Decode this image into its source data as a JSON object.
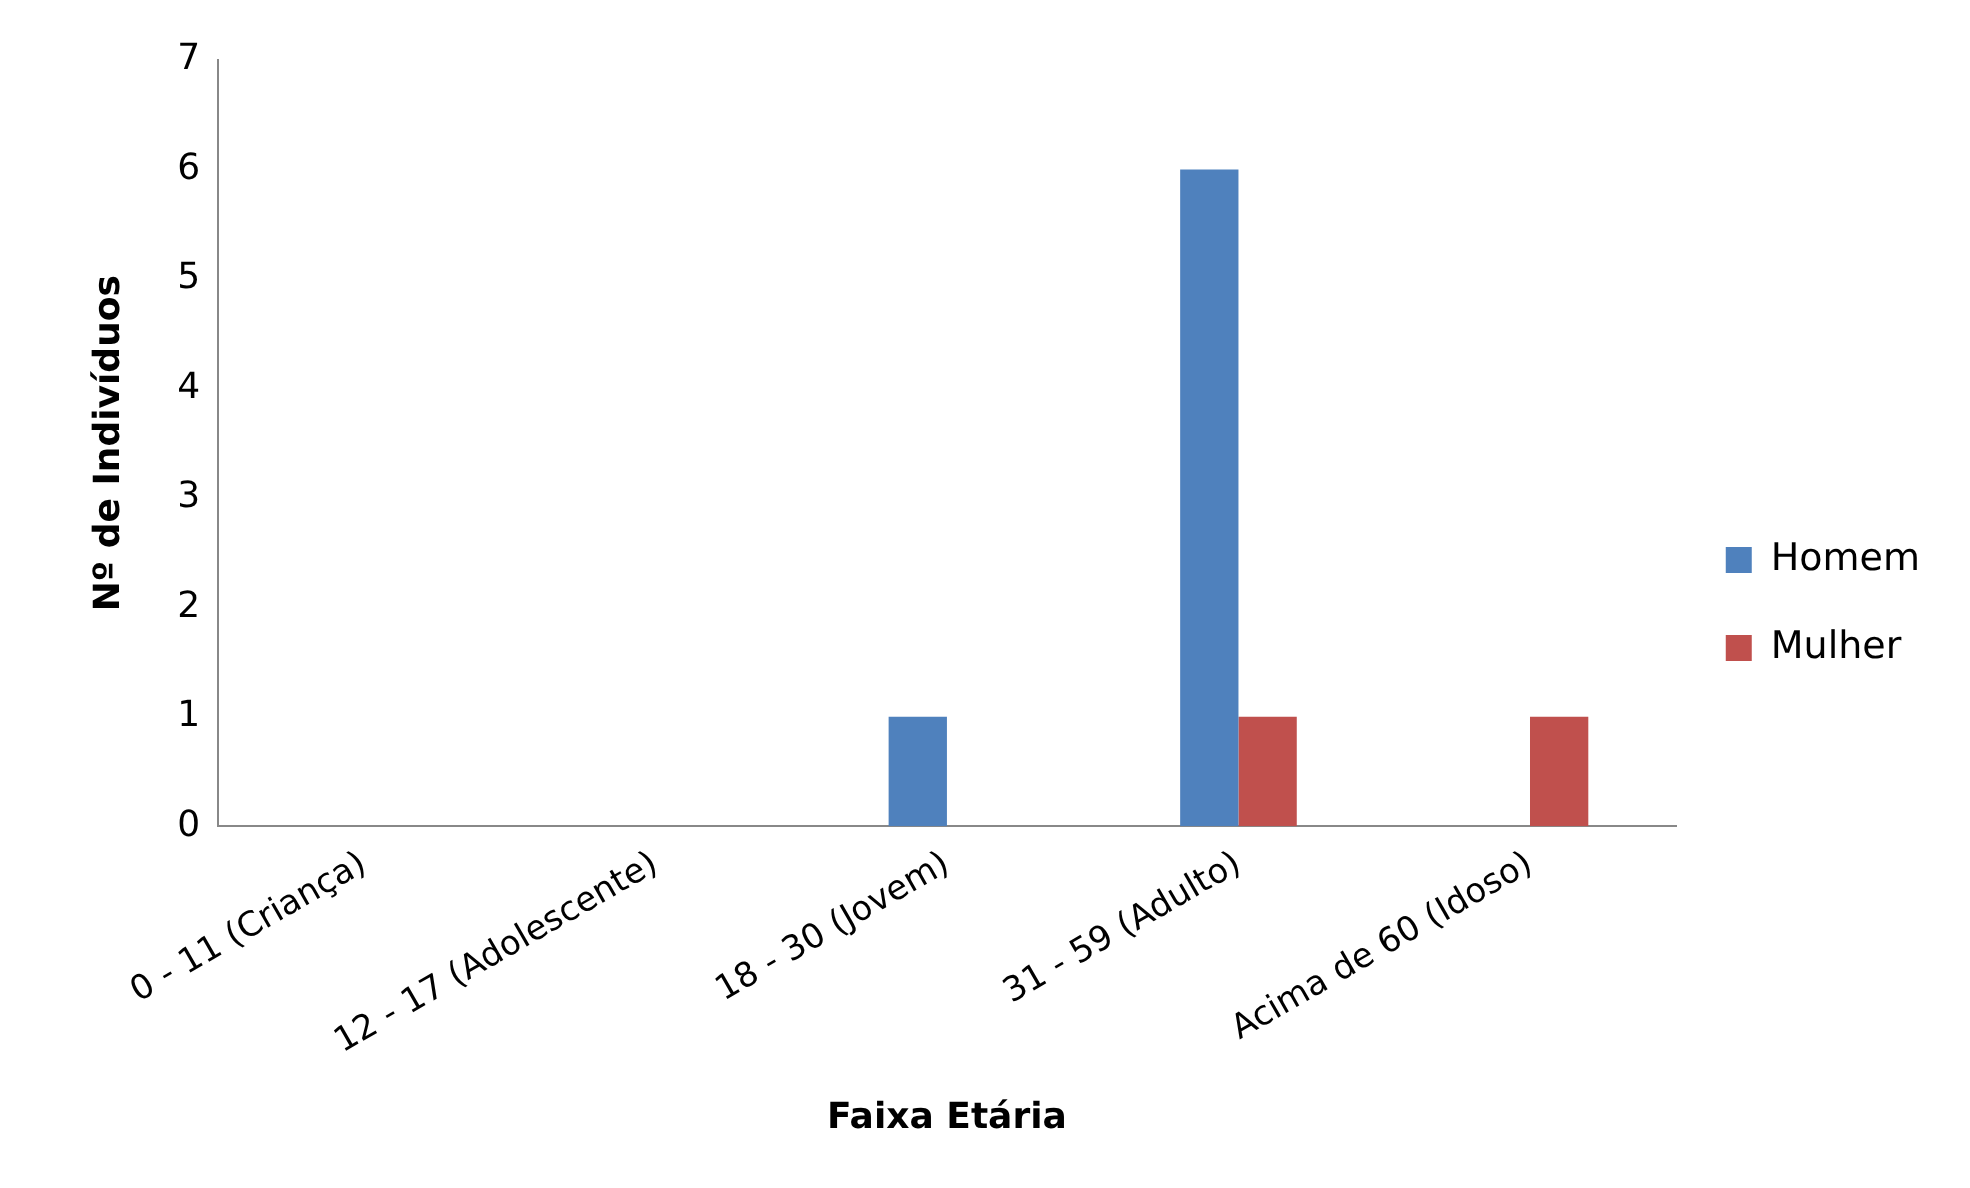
{
  "chart_data": {
    "type": "bar",
    "xlabel": "Faixa Etária",
    "ylabel": "Nº de Indivíduos",
    "categories": [
      "0 - 11 (Criança)",
      "12 - 17 (Adolescente)",
      "18 - 30 (Jovem)",
      "31 - 59 (Adulto)",
      "Acima de 60 (Idoso)"
    ],
    "series": [
      {
        "name": "Homem",
        "color": "#4f81bd",
        "values": [
          0,
          0,
          1,
          6,
          0
        ]
      },
      {
        "name": "Mulher",
        "color": "#c0504d",
        "values": [
          0,
          0,
          0,
          1,
          1
        ]
      }
    ],
    "ylim": [
      0,
      7
    ],
    "yticks": [
      0,
      1,
      2,
      3,
      4,
      5,
      6,
      7
    ],
    "grid": false,
    "legend": "right"
  }
}
